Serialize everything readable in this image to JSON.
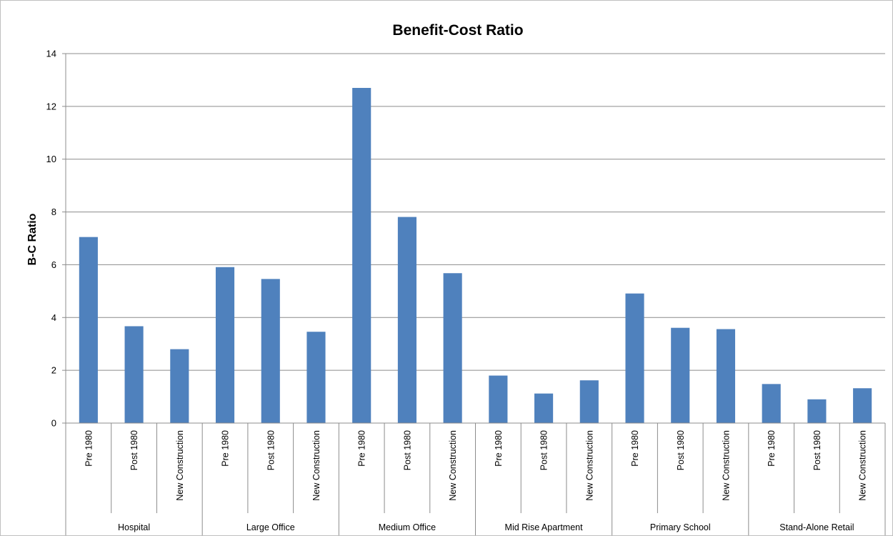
{
  "chart_data": {
    "type": "bar",
    "title": "Benefit-Cost Ratio",
    "xlabel": "",
    "ylabel": "B-C Ratio",
    "ylim": [
      0,
      14
    ],
    "yticks": [
      0,
      2,
      4,
      6,
      8,
      10,
      12,
      14
    ],
    "grid": true,
    "legend": "none",
    "bar_color": "#4f81bd",
    "groups": [
      {
        "name": "Hospital",
        "categories": [
          "Pre 1980",
          "Post 1980",
          "New Construction"
        ],
        "values": [
          7.05,
          3.67,
          2.8
        ]
      },
      {
        "name": "Large Office",
        "categories": [
          "Pre 1980",
          "Post 1980",
          "New Construction"
        ],
        "values": [
          5.91,
          5.46,
          3.46
        ]
      },
      {
        "name": "Medium Office",
        "categories": [
          "Pre 1980",
          "Post 1980",
          "New Construction"
        ],
        "values": [
          12.7,
          7.81,
          5.68
        ]
      },
      {
        "name": "Mid Rise Apartment",
        "categories": [
          "Pre 1980",
          "Post 1980",
          "New Construction"
        ],
        "values": [
          1.8,
          1.12,
          1.62
        ]
      },
      {
        "name": "Primary School",
        "categories": [
          "Pre 1980",
          "Post 1980",
          "New Construction"
        ],
        "values": [
          4.91,
          3.61,
          3.56
        ]
      },
      {
        "name": "Stand-Alone Retail",
        "categories": [
          "Pre 1980",
          "Post 1980",
          "New Construction"
        ],
        "values": [
          1.48,
          0.9,
          1.32
        ]
      }
    ]
  }
}
